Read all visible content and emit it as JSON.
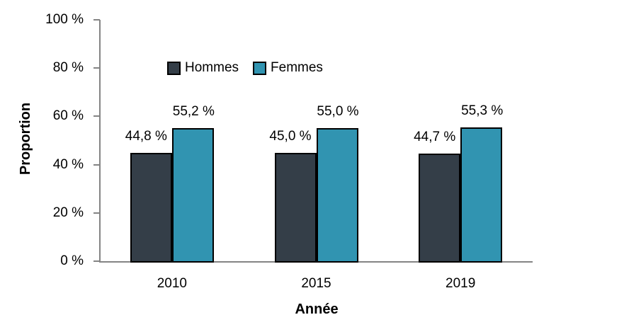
{
  "chart_data": {
    "type": "bar",
    "title": "",
    "xlabel": "Année",
    "ylabel": "Proportion",
    "categories": [
      "2010",
      "2015",
      "2019"
    ],
    "series": [
      {
        "name": "Hommes",
        "color": "#343E48",
        "values": [
          44.8,
          45.0,
          44.7
        ],
        "value_labels": [
          "44,8 %",
          "45,0 %",
          "44,7 %"
        ]
      },
      {
        "name": "Femmes",
        "color": "#3194B1",
        "values": [
          55.2,
          55.0,
          55.3
        ],
        "value_labels": [
          "55,2 %",
          "55,0 %",
          "55,3 %"
        ]
      }
    ],
    "ylim": [
      0,
      100
    ],
    "yticks": [
      0,
      20,
      40,
      60,
      80,
      100
    ],
    "ytick_labels": [
      "0 %",
      "20 %",
      "40 %",
      "60 %",
      "80 %",
      "100 %"
    ],
    "grid": false,
    "legend_position": "inside-top-center",
    "axis_color": "#848484",
    "bar_border_color": "#000000",
    "label_color": "#000000"
  }
}
